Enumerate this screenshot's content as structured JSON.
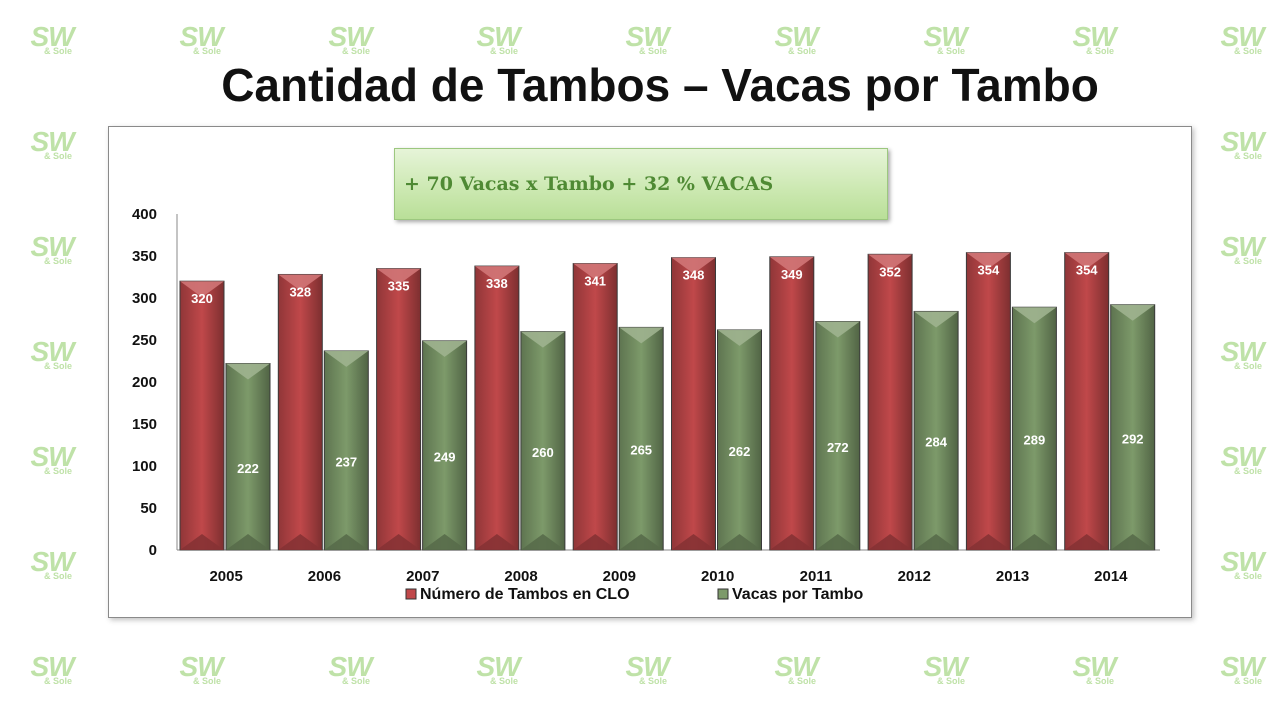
{
  "title": "Cantidad de Tambos – Vacas por Tambo",
  "callout": "+ 70 Vacas x Tambo  + 32 % VACAS",
  "watermark": {
    "main": "SW",
    "sub": "& Sole",
    "color": "#bfe2a8"
  },
  "chart_data": {
    "type": "bar",
    "title": "",
    "xlabel": "",
    "ylabel": "",
    "ylim": [
      0,
      400
    ],
    "yticks": [
      0,
      50,
      100,
      150,
      200,
      250,
      300,
      350,
      400
    ],
    "categories": [
      "2005",
      "2006",
      "2007",
      "2008",
      "2009",
      "2010",
      "2011",
      "2012",
      "2013",
      "2014"
    ],
    "series": [
      {
        "name": "Número de Tambos en CLO",
        "color": "#c0484a",
        "values": [
          320,
          328,
          335,
          338,
          341,
          348,
          349,
          352,
          354,
          354
        ]
      },
      {
        "name": "Vacas por Tambo",
        "color": "#7d9a6a",
        "values": [
          222,
          237,
          249,
          260,
          265,
          262,
          272,
          284,
          289,
          292
        ]
      }
    ],
    "legend_position": "bottom",
    "grid": false
  }
}
